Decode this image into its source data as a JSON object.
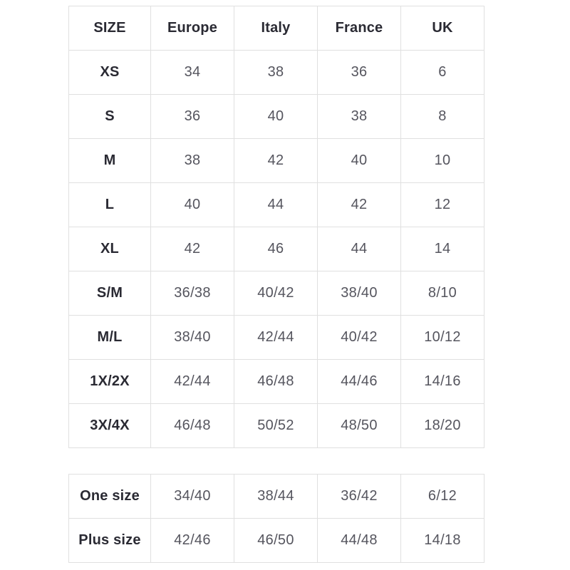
{
  "page": {
    "background_color": "#ffffff"
  },
  "colors": {
    "border": "#e0e0e0",
    "header_text": "#2a2a33",
    "value_text": "#55555e"
  },
  "size_chart": {
    "headers": [
      "SIZE",
      "Europe",
      "Italy",
      "France",
      "UK"
    ],
    "rows": [
      {
        "label": "XS",
        "values": [
          "34",
          "38",
          "36",
          "6"
        ]
      },
      {
        "label": "S",
        "values": [
          "36",
          "40",
          "38",
          "8"
        ]
      },
      {
        "label": "M",
        "values": [
          "38",
          "42",
          "40",
          "10"
        ]
      },
      {
        "label": "L",
        "values": [
          "40",
          "44",
          "42",
          "12"
        ]
      },
      {
        "label": "XL",
        "values": [
          "42",
          "46",
          "44",
          "14"
        ]
      },
      {
        "label": "S/M",
        "values": [
          "36/38",
          "40/42",
          "38/40",
          "8/10"
        ]
      },
      {
        "label": "M/L",
        "values": [
          "38/40",
          "42/44",
          "40/42",
          "10/12"
        ]
      },
      {
        "label": "1X/2X",
        "values": [
          "42/44",
          "46/48",
          "44/46",
          "14/16"
        ]
      },
      {
        "label": "3X/4X",
        "values": [
          "46/48",
          "50/52",
          "48/50",
          "18/20"
        ]
      }
    ]
  },
  "special_sizes": {
    "rows": [
      {
        "label": "One size",
        "values": [
          "34/40",
          "38/44",
          "36/42",
          "6/12"
        ]
      },
      {
        "label": "Plus size",
        "values": [
          "42/46",
          "46/50",
          "44/48",
          "14/18"
        ]
      }
    ]
  }
}
